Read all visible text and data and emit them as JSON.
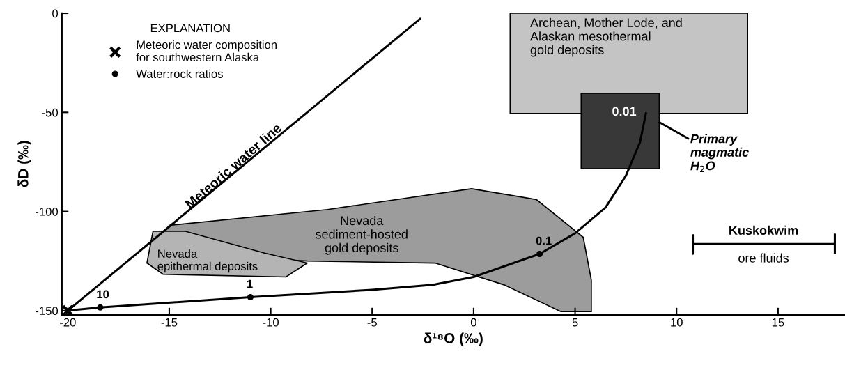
{
  "chart_data": {
    "type": "line",
    "xlabel": "δ¹⁸O (‰)",
    "ylabel": "δD (‰)",
    "legend_title": "EXPLANATION",
    "legend": "top left",
    "xlim": [
      -20.3,
      18.3
    ],
    "ylim": [
      -152,
      0
    ],
    "xticks": [
      -20,
      -15,
      -10,
      -5,
      0,
      5,
      10,
      15
    ],
    "yticks": [
      0,
      -50,
      -100,
      -150
    ],
    "grid": false,
    "series": [
      {
        "type": "area",
        "color": "#c4c4c4",
        "x": [
          1.8,
          13.5,
          13.5,
          1.8
        ],
        "values": [
          0,
          0,
          -50.5,
          -50.5
        ]
      },
      {
        "type": "area",
        "color": "#9c9c9c",
        "x": [
          -15,
          -7.2,
          -0.1,
          3.1,
          5.4,
          5.8,
          5.8,
          4.3,
          1.5,
          -1.9,
          -8.2,
          -16,
          -15
        ],
        "values": [
          -107,
          -99,
          -88.5,
          -94,
          -113,
          -134.5,
          -150.5,
          -150.5,
          -137,
          -126,
          -125,
          -121,
          -107
        ]
      },
      {
        "type": "area",
        "color": "#b4b4b4",
        "x": [
          -15.8,
          -16.1,
          -15.3,
          -9.25,
          -8.2,
          -10.3,
          -14.2,
          -15.8
        ],
        "values": [
          -110,
          -126,
          -131.7,
          -133,
          -126,
          -121,
          -110,
          -110
        ]
      },
      {
        "type": "area",
        "color": "#383838",
        "x": [
          5.3,
          9.15,
          9.15,
          5.3
        ],
        "values": [
          -40.4,
          -40.4,
          -78.4,
          -78.4
        ]
      },
      {
        "color": "#000000",
        "x": [
          -20,
          -2.6
        ],
        "values": [
          -150,
          -2.5
        ]
      },
      {
        "color": "#000000",
        "x": [
          -20,
          -18.4,
          -11.0,
          -5,
          -2,
          0,
          3.25,
          5,
          6.5,
          7.5,
          8.2,
          8.5
        ],
        "values": [
          -150,
          -148.4,
          -143.2,
          -139.5,
          -137,
          -133,
          -121.4,
          -111,
          -98,
          -82,
          -65,
          -50
        ]
      },
      {
        "type": "line",
        "color": "#000000",
        "x": [
          10.8,
          10.8,
          10.8,
          17.8,
          17.8,
          17.8
        ],
        "values": [
          -111.5,
          -121.3,
          -116.4,
          -116.4,
          -111.5,
          -121.3
        ]
      },
      {
        "type": "scatter",
        "name": "Meteoric water composition\nfor southwestern Alaska",
        "marker": "cross",
        "color": "#000000",
        "x": [
          -20
        ],
        "values": [
          -150
        ]
      },
      {
        "type": "scatter",
        "name": "Water:rock ratios",
        "marker": "circle",
        "color": "#000000",
        "x": [
          -18.4,
          -11.0,
          3.25
        ],
        "values": [
          -148.4,
          -143.2,
          -121.4
        ]
      }
    ],
    "annotations": [
      "Meteoric water line",
      "Archean, Mother Lode, and\nAlaskan mesothermal\ngold deposits",
      {
        "text": "0.01",
        "x": 8.5,
        "y": -50
      },
      {
        "text": "Primary\nmagmatic\nH$_{2}$O",
        "x": 9.15,
        "y": -55
      },
      "Nevada\nsediment-hosted\ngold deposits",
      "Nevada\nepithermal deposits",
      "Kuskokwim",
      "ore fluids",
      {
        "text": "10",
        "x": -18.4,
        "y": -148.4
      },
      {
        "text": "1",
        "x": -11.0,
        "y": -143.2
      },
      {
        "text": "0.1",
        "x": 3.25,
        "y": -121.4
      }
    ]
  }
}
